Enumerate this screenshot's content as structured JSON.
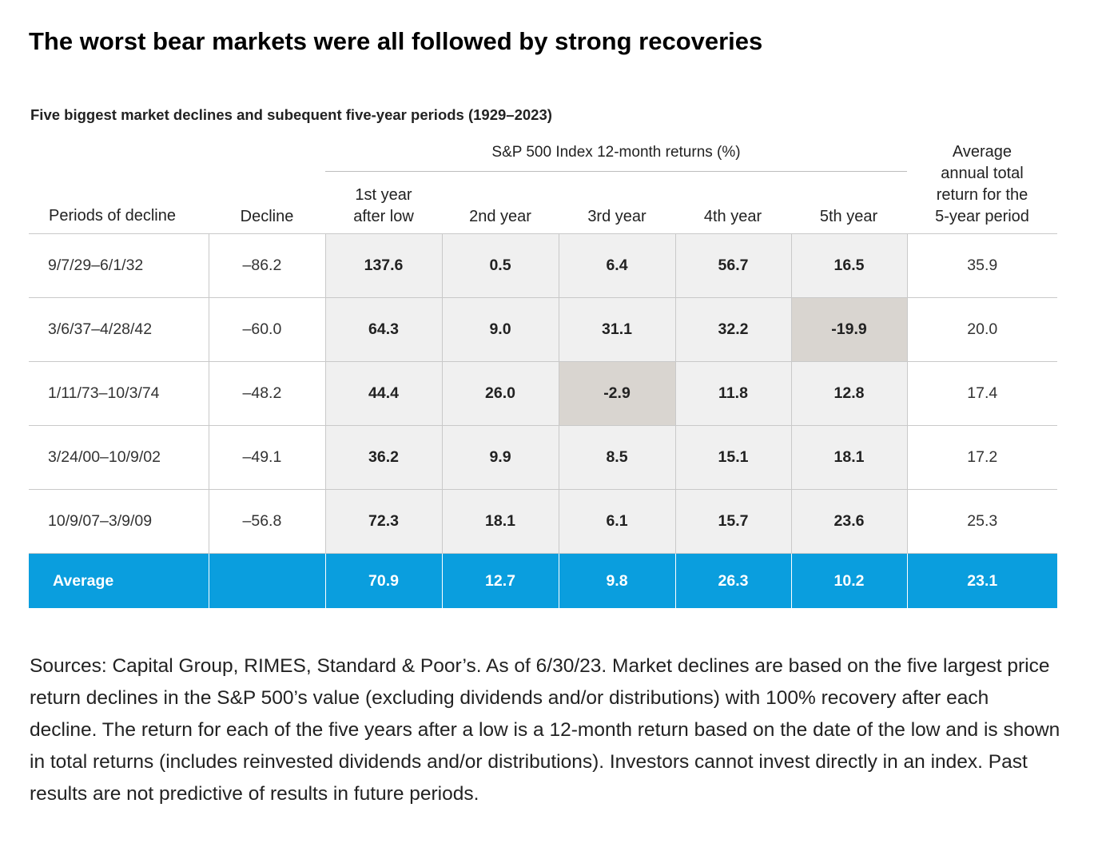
{
  "title": "The worst bear markets were all followed by strong recoveries",
  "subtitle": "Five biggest market declines and subequent five-year periods (1929–2023)",
  "span_header": "S&P 500 Index 12-month returns (%)",
  "columns": {
    "period": "Periods of decline",
    "decline": "Decline",
    "y1": "1st year\nafter low",
    "y2": "2nd year",
    "y3": "3rd year",
    "y4": "4th year",
    "y5": "5th year",
    "avg_annual": "Average\nannual total\nreturn for the\n5-year period"
  },
  "colors": {
    "average_row": "#0a9ede",
    "negative_highlight": "#d9d5d0",
    "returns_background": "#f0f0f0"
  },
  "chart_data": {
    "type": "table",
    "rows": [
      {
        "period": "9/7/29–6/1/32",
        "decline": "–86.2",
        "y1": "137.6",
        "y2": "0.5",
        "y3": "6.4",
        "y4": "56.7",
        "y5": "16.5",
        "avg_annual": "35.9"
      },
      {
        "period": "3/6/37–4/28/42",
        "decline": "–60.0",
        "y1": "64.3",
        "y2": "9.0",
        "y3": "31.1",
        "y4": "32.2",
        "y5": "-19.9",
        "avg_annual": "20.0"
      },
      {
        "period": "1/11/73–10/3/74",
        "decline": "–48.2",
        "y1": "44.4",
        "y2": "26.0",
        "y3": "-2.9",
        "y4": "11.8",
        "y5": "12.8",
        "avg_annual": "17.4"
      },
      {
        "period": "3/24/00–10/9/02",
        "decline": "–49.1",
        "y1": "36.2",
        "y2": "9.9",
        "y3": "8.5",
        "y4": "15.1",
        "y5": "18.1",
        "avg_annual": "17.2"
      },
      {
        "period": "10/9/07–3/9/09",
        "decline": "–56.8",
        "y1": "72.3",
        "y2": "18.1",
        "y3": "6.1",
        "y4": "15.7",
        "y5": "23.6",
        "avg_annual": "25.3"
      }
    ],
    "average": {
      "label": "Average",
      "y1": "70.9",
      "y2": "12.7",
      "y3": "9.8",
      "y4": "26.3",
      "y5": "10.2",
      "avg_annual": "23.1"
    }
  },
  "sources": "Sources: Capital Group, RIMES, Standard & Poor’s. As of 6/30/23. Market declines are based on the five largest price return declines in the S&P 500’s value (excluding dividends and/or distributions) with 100% recovery after each decline. The return for each of the five years after a low is a 12-month return based on the date of the low and is shown in total returns (includes reinvested dividends and/or distributions). Investors cannot invest directly in an index. Past results are not predictive of results in future periods."
}
